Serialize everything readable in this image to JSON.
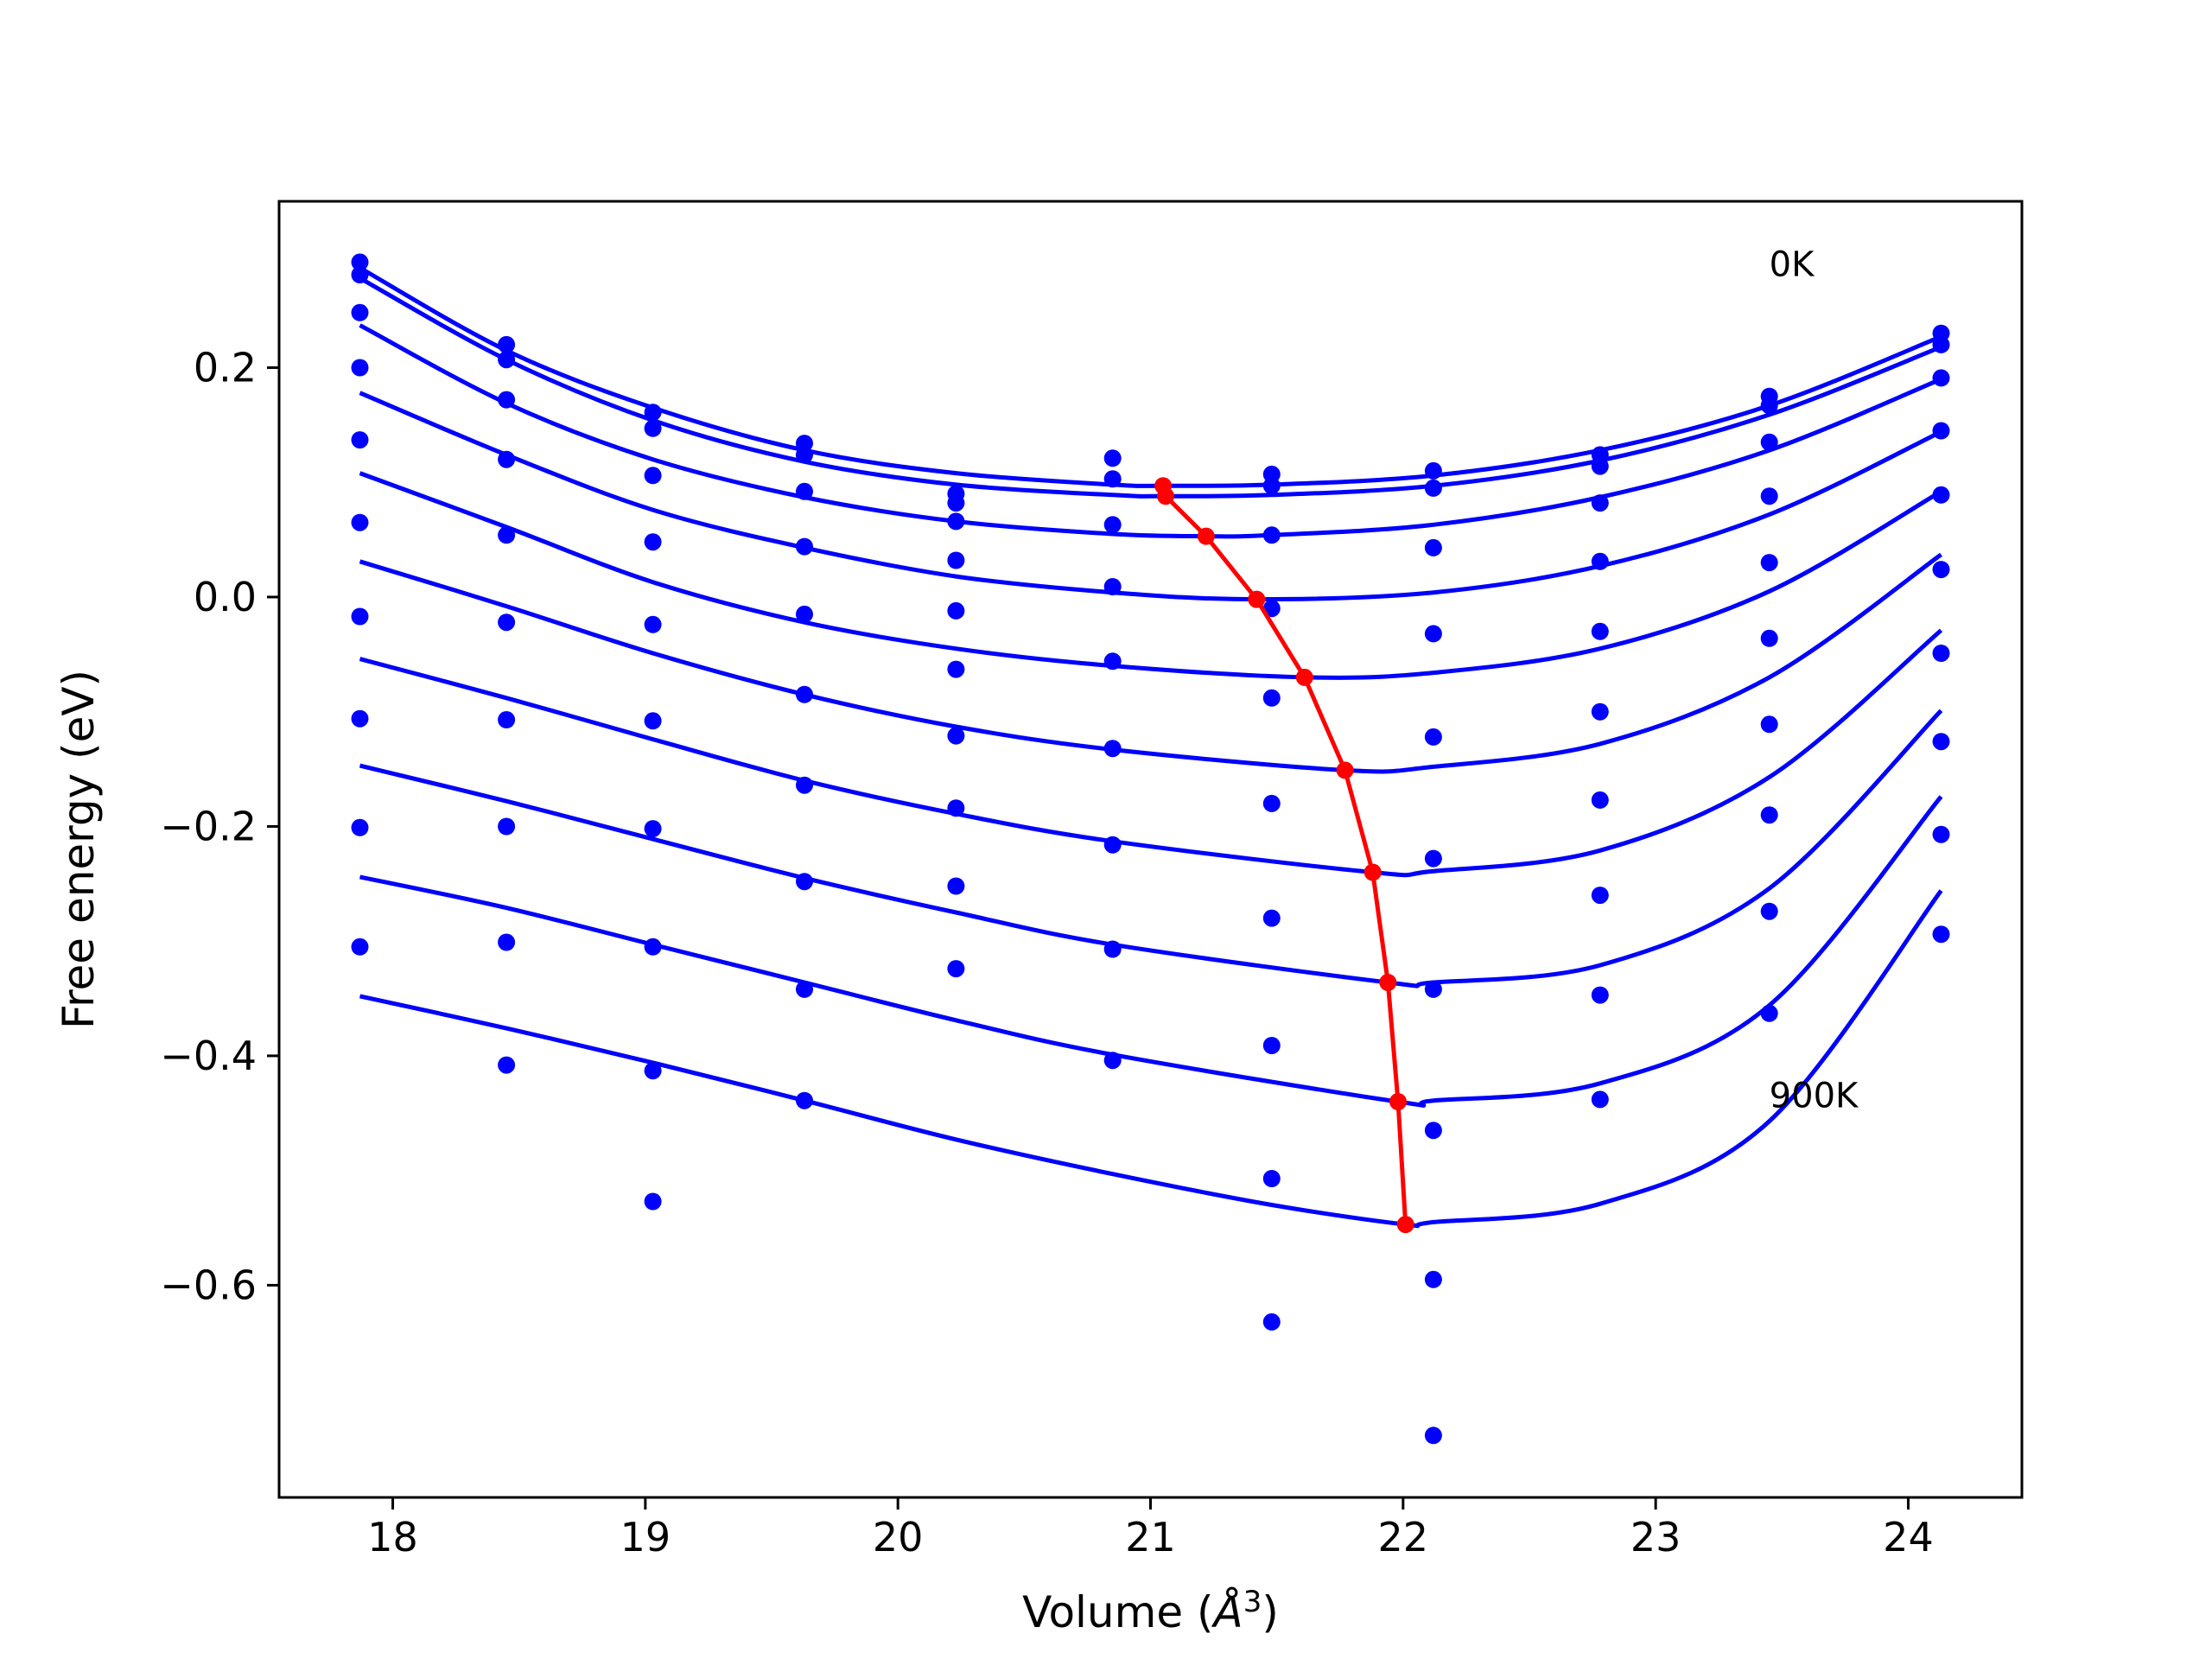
{
  "chart_data": {
    "type": "line",
    "title": "",
    "xlabel": "Volume (",
    "xlabel_symbol": "Å",
    "xlabel_exponent": "3",
    "xlabel_suffix": ")",
    "ylabel": "Free energy (eV)",
    "xlim": [
      17.55,
      24.45
    ],
    "ylim": [
      -0.785,
      0.345
    ],
    "x_ticks": [
      18,
      19,
      20,
      21,
      22,
      23,
      24
    ],
    "x_tick_labels": [
      "18",
      "19",
      "20",
      "21",
      "22",
      "23",
      "24"
    ],
    "y_ticks": [
      -0.6,
      -0.4,
      -0.2,
      0.0,
      0.2
    ],
    "y_tick_labels": [
      "−0.6",
      "−0.4",
      "−0.2",
      "0.0",
      "0.2"
    ],
    "grid": false,
    "legend": "none",
    "annotations": [
      {
        "text": "0K",
        "x": 23.45,
        "y": 0.28
      },
      {
        "text": "900K",
        "x": 23.45,
        "y": -0.445
      }
    ],
    "volumes": [
      17.87,
      18.45,
      19.03,
      19.63,
      20.23,
      20.85,
      21.48,
      22.12,
      22.78,
      23.45,
      24.13
    ],
    "series": [
      {
        "temperature_K": 0,
        "fit_min": [
          21.05,
          0.097
        ],
        "points": [
          0.292,
          0.22,
          0.161,
          0.134,
          0.09,
          0.121,
          0.107,
          0.11,
          0.124,
          0.175,
          0.23
        ]
      },
      {
        "temperature_K": 100,
        "fit_min": [
          21.06,
          0.088
        ],
        "points": [
          0.281,
          0.207,
          0.147,
          0.124,
          0.082,
          0.103,
          0.097,
          0.095,
          0.114,
          0.167,
          0.22
        ]
      },
      {
        "temperature_K": 200,
        "fit_min": [
          21.22,
          0.053
        ],
        "points": [
          0.248,
          0.172,
          0.106,
          0.092,
          0.066,
          0.063,
          0.054,
          0.043,
          0.082,
          0.135,
          0.191
        ]
      },
      {
        "temperature_K": 300,
        "fit_min": [
          21.42,
          -0.002
        ],
        "points": [
          0.2,
          0.12,
          0.048,
          0.044,
          0.032,
          0.009,
          -0.01,
          -0.032,
          0.031,
          0.088,
          0.145
        ]
      },
      {
        "temperature_K": 400,
        "fit_min": [
          21.61,
          -0.07
        ],
        "points": [
          0.137,
          0.054,
          -0.024,
          -0.015,
          -0.012,
          -0.056,
          -0.088,
          -0.122,
          -0.03,
          0.03,
          0.089
        ]
      },
      {
        "temperature_K": 500,
        "fit_min": [
          21.77,
          -0.151
        ],
        "points": [
          0.065,
          -0.022,
          -0.108,
          -0.085,
          -0.063,
          -0.132,
          -0.18,
          -0.228,
          -0.1,
          -0.036,
          0.024
        ]
      },
      {
        "temperature_K": 600,
        "fit_min": [
          21.88,
          -0.24
        ],
        "points": [
          -0.017,
          -0.107,
          -0.202,
          -0.164,
          -0.121,
          -0.216,
          -0.28,
          -0.342,
          -0.177,
          -0.111,
          -0.049
        ]
      },
      {
        "temperature_K": 700,
        "fit_min": [
          21.94,
          -0.336
        ],
        "points": [
          -0.106,
          -0.2,
          -0.305,
          -0.248,
          -0.184,
          -0.307,
          -0.391,
          -0.465,
          -0.26,
          -0.19,
          -0.126
        ]
      },
      {
        "temperature_K": 800,
        "fit_min": [
          21.98,
          -0.44
        ],
        "points": [
          -0.201,
          -0.301,
          -0.413,
          -0.342,
          -0.252,
          -0.404,
          -0.507,
          -0.595,
          -0.347,
          -0.274,
          -0.207
        ]
      },
      {
        "temperature_K": 900,
        "fit_min": [
          22.01,
          -0.547
        ],
        "points": [
          -0.305,
          -0.408,
          -0.527,
          -0.439,
          -0.324,
          null,
          -0.632,
          -0.731,
          -0.438,
          -0.363,
          -0.294
        ]
      }
    ],
    "curves": [
      {
        "temperature_K": 0,
        "x": [
          17.87,
          18.45,
          19.03,
          19.63,
          20.23,
          20.85,
          21.05,
          21.48,
          22.12,
          22.78,
          23.45,
          24.13
        ],
        "y": [
          0.287,
          0.215,
          0.165,
          0.128,
          0.108,
          0.098,
          0.097,
          0.098,
          0.106,
          0.128,
          0.167,
          0.227
        ]
      },
      {
        "temperature_K": 100,
        "x": [
          17.87,
          18.45,
          19.03,
          19.63,
          20.23,
          20.85,
          21.06,
          21.48,
          22.12,
          22.78,
          23.45,
          24.13
        ],
        "y": [
          0.278,
          0.207,
          0.154,
          0.118,
          0.098,
          0.089,
          0.088,
          0.089,
          0.097,
          0.119,
          0.159,
          0.218
        ]
      },
      {
        "temperature_K": 200,
        "x": [
          17.87,
          18.45,
          19.03,
          19.63,
          20.23,
          20.85,
          21.22,
          21.48,
          22.12,
          22.78,
          23.45,
          24.13
        ],
        "y": [
          0.237,
          0.169,
          0.12,
          0.087,
          0.066,
          0.055,
          0.053,
          0.054,
          0.063,
          0.087,
          0.128,
          0.19
        ]
      },
      {
        "temperature_K": 300,
        "x": [
          17.87,
          18.45,
          19.03,
          19.63,
          20.23,
          20.85,
          21.42,
          22.12,
          22.78,
          23.45,
          24.13
        ],
        "y": [
          0.178,
          0.124,
          0.076,
          0.043,
          0.018,
          0.004,
          -0.002,
          0.004,
          0.027,
          0.072,
          0.144
        ]
      },
      {
        "temperature_K": 400,
        "x": [
          17.87,
          18.45,
          19.03,
          19.63,
          20.23,
          20.85,
          21.61,
          22.12,
          22.78,
          23.45,
          24.13
        ],
        "y": [
          0.108,
          0.061,
          0.013,
          -0.022,
          -0.045,
          -0.06,
          -0.07,
          -0.066,
          -0.045,
          0.005,
          0.092
        ]
      },
      {
        "temperature_K": 500,
        "x": [
          17.87,
          18.45,
          19.03,
          19.63,
          20.23,
          20.85,
          21.77,
          22.12,
          22.78,
          23.45,
          24.13
        ],
        "y": [
          0.031,
          -0.008,
          -0.049,
          -0.085,
          -0.113,
          -0.133,
          -0.151,
          -0.148,
          -0.128,
          -0.07,
          0.037
        ]
      },
      {
        "temperature_K": 600,
        "x": [
          17.87,
          18.45,
          19.03,
          19.63,
          20.23,
          20.85,
          21.88,
          22.12,
          22.78,
          23.45,
          24.13
        ],
        "y": [
          -0.054,
          -0.088,
          -0.124,
          -0.16,
          -0.189,
          -0.213,
          -0.24,
          -0.239,
          -0.221,
          -0.157,
          -0.029
        ]
      },
      {
        "temperature_K": 700,
        "x": [
          17.87,
          18.45,
          19.03,
          19.63,
          20.23,
          20.85,
          21.94,
          22.12,
          22.78,
          23.45,
          24.13
        ],
        "y": [
          -0.147,
          -0.178,
          -0.211,
          -0.245,
          -0.275,
          -0.303,
          -0.336,
          -0.336,
          -0.321,
          -0.254,
          -0.099
        ]
      },
      {
        "temperature_K": 800,
        "x": [
          17.87,
          18.45,
          19.03,
          19.63,
          20.23,
          20.85,
          21.98,
          22.12,
          22.78,
          23.45,
          24.13
        ],
        "y": [
          -0.244,
          -0.271,
          -0.303,
          -0.336,
          -0.369,
          -0.399,
          -0.44,
          -0.439,
          -0.424,
          -0.356,
          -0.174
        ]
      },
      {
        "temperature_K": 900,
        "x": [
          17.87,
          18.45,
          19.03,
          19.63,
          20.23,
          20.85,
          21.48,
          22.01,
          22.12,
          22.78,
          23.45,
          24.13
        ],
        "y": [
          -0.348,
          -0.376,
          -0.406,
          -0.439,
          -0.473,
          -0.503,
          -0.53,
          -0.547,
          -0.545,
          -0.529,
          -0.457,
          -0.256
        ]
      }
    ],
    "equilibrium_line": {
      "x": [
        21.05,
        21.06,
        21.22,
        21.42,
        21.61,
        21.77,
        21.88,
        21.94,
        21.98,
        22.01
      ],
      "y": [
        0.097,
        0.088,
        0.053,
        -0.002,
        -0.07,
        -0.151,
        -0.24,
        -0.336,
        -0.44,
        -0.547
      ]
    },
    "colors": {
      "points": "#0000ff",
      "fits": "#0000ff",
      "equilibrium": "#ff0000",
      "axes": "#000000"
    }
  }
}
